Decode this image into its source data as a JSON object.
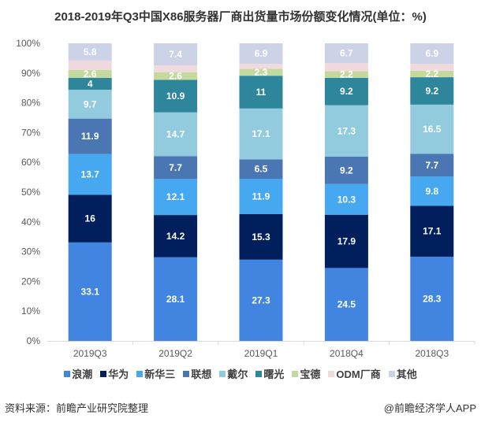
{
  "chart_data": {
    "type": "bar",
    "stacked": true,
    "title": "2018-2019年Q3中国X86服务器厂商出货量市场份额变化情况(单位：%)",
    "xlabel": "",
    "ylabel": "",
    "ylim": [
      0,
      100
    ],
    "yticks": [
      "0%",
      "10%",
      "20%",
      "30%",
      "40%",
      "50%",
      "60%",
      "70%",
      "80%",
      "90%",
      "100%"
    ],
    "categories": [
      "2019Q3",
      "2019Q2",
      "2019Q1",
      "2018Q4",
      "2018Q3"
    ],
    "legend_position": "bottom",
    "series": [
      {
        "name": "浪潮",
        "color": "#4285e0",
        "values": [
          33.1,
          28.1,
          27.3,
          24.5,
          28.3
        ],
        "labeled": true
      },
      {
        "name": "华为",
        "color": "#001f5c",
        "values": [
          16,
          14.2,
          15.3,
          17.9,
          17.1
        ],
        "labeled": true
      },
      {
        "name": "新华三",
        "color": "#45a8f0",
        "values": [
          13.7,
          12.1,
          11.9,
          10.3,
          9.8
        ],
        "labeled": true
      },
      {
        "name": "联想",
        "color": "#4a77b3",
        "values": [
          11.9,
          7.7,
          6.5,
          9.2,
          7.7
        ],
        "labeled": true
      },
      {
        "name": "戴尔",
        "color": "#93cbde",
        "values": [
          9.7,
          14.7,
          17.1,
          17.3,
          16.5
        ],
        "labeled": true
      },
      {
        "name": "曙光",
        "color": "#2e869c",
        "values": [
          4,
          10.9,
          11,
          9.2,
          9.2
        ],
        "labeled": true
      },
      {
        "name": "宝德",
        "color": "#c4d99e",
        "values": [
          2.6,
          2.6,
          2.3,
          2.2,
          2.2
        ],
        "labeled": true
      },
      {
        "name": "ODM厂商",
        "color": "#f1dadd",
        "values": [
          3.2,
          2.3,
          1.7,
          2.7,
          2.3
        ],
        "labeled": false
      },
      {
        "name": "其他",
        "color": "#ccd3e6",
        "values": [
          5.8,
          7.4,
          6.9,
          6.7,
          6.9
        ],
        "labeled": true
      }
    ]
  },
  "footer": {
    "source": "资料来源：前瞻产业研究院整理",
    "credit": "@前瞻经济学人APP"
  }
}
